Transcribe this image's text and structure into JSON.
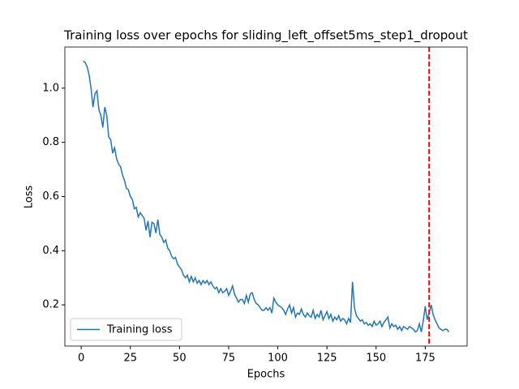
{
  "chart_data": {
    "type": "line",
    "title": "Training loss over epochs for sliding_left_offset5ms_step1_dropout",
    "xlabel": "Epochs",
    "ylabel": "Loss",
    "x": [
      1,
      2,
      3,
      4,
      5,
      6,
      7,
      8,
      9,
      10,
      11,
      12,
      13,
      14,
      15,
      16,
      17,
      18,
      19,
      20,
      21,
      22,
      23,
      24,
      25,
      26,
      27,
      28,
      29,
      30,
      31,
      32,
      33,
      34,
      35,
      36,
      37,
      38,
      39,
      40,
      41,
      42,
      43,
      44,
      45,
      46,
      47,
      48,
      49,
      50,
      51,
      52,
      53,
      54,
      55,
      56,
      57,
      58,
      59,
      60,
      61,
      62,
      63,
      64,
      65,
      66,
      67,
      68,
      69,
      70,
      71,
      72,
      73,
      74,
      75,
      76,
      77,
      78,
      79,
      80,
      81,
      82,
      83,
      84,
      85,
      86,
      87,
      88,
      89,
      90,
      91,
      92,
      93,
      94,
      95,
      96,
      97,
      98,
      99,
      100,
      101,
      102,
      103,
      104,
      105,
      106,
      107,
      108,
      109,
      110,
      111,
      112,
      113,
      114,
      115,
      116,
      117,
      118,
      119,
      120,
      121,
      122,
      123,
      124,
      125,
      126,
      127,
      128,
      129,
      130,
      131,
      132,
      133,
      134,
      135,
      136,
      137,
      138,
      139,
      140,
      141,
      142,
      143,
      144,
      145,
      146,
      147,
      148,
      149,
      150,
      151,
      152,
      153,
      154,
      155,
      156,
      157,
      158,
      159,
      160,
      161,
      162,
      163,
      164,
      165,
      166,
      167,
      168,
      169,
      170,
      171,
      172,
      173,
      174,
      175,
      176,
      177,
      178,
      179,
      180,
      181,
      182,
      183,
      184,
      185,
      186,
      187
    ],
    "series": [
      {
        "name": "Training loss",
        "color": "#1f77b4",
        "values": [
          1.1,
          1.095,
          1.08,
          1.05,
          1.0,
          0.93,
          0.98,
          0.99,
          0.92,
          0.9,
          0.855,
          0.93,
          0.9,
          0.82,
          0.81,
          0.76,
          0.78,
          0.74,
          0.72,
          0.71,
          0.68,
          0.66,
          0.63,
          0.625,
          0.6,
          0.59,
          0.555,
          0.56,
          0.525,
          0.54,
          0.53,
          0.52,
          0.475,
          0.51,
          0.45,
          0.505,
          0.5,
          0.465,
          0.515,
          0.46,
          0.45,
          0.43,
          0.44,
          0.41,
          0.4,
          0.38,
          0.37,
          0.375,
          0.35,
          0.34,
          0.33,
          0.31,
          0.3,
          0.31,
          0.285,
          0.305,
          0.285,
          0.3,
          0.28,
          0.29,
          0.275,
          0.29,
          0.28,
          0.29,
          0.275,
          0.285,
          0.27,
          0.26,
          0.265,
          0.245,
          0.26,
          0.245,
          0.25,
          0.26,
          0.235,
          0.25,
          0.27,
          0.24,
          0.225,
          0.21,
          0.22,
          0.22,
          0.205,
          0.235,
          0.21,
          0.24,
          0.245,
          0.22,
          0.205,
          0.2,
          0.19,
          0.18,
          0.18,
          0.19,
          0.18,
          0.19,
          0.17,
          0.225,
          0.21,
          0.2,
          0.195,
          0.19,
          0.18,
          0.165,
          0.185,
          0.2,
          0.17,
          0.19,
          0.155,
          0.17,
          0.165,
          0.185,
          0.165,
          0.155,
          0.17,
          0.16,
          0.155,
          0.18,
          0.15,
          0.165,
          0.155,
          0.18,
          0.145,
          0.16,
          0.175,
          0.15,
          0.165,
          0.14,
          0.155,
          0.145,
          0.16,
          0.14,
          0.15,
          0.145,
          0.13,
          0.15,
          0.135,
          0.285,
          0.19,
          0.16,
          0.15,
          0.14,
          0.145,
          0.13,
          0.135,
          0.125,
          0.13,
          0.12,
          0.14,
          0.125,
          0.13,
          0.14,
          0.12,
          0.135,
          0.145,
          0.155,
          0.115,
          0.13,
          0.12,
          0.125,
          0.11,
          0.12,
          0.105,
          0.12,
          0.115,
          0.11,
          0.12,
          0.115,
          0.11,
          0.1,
          0.105,
          0.13,
          0.1,
          0.14,
          0.195,
          0.145,
          0.17,
          0.2,
          0.165,
          0.145,
          0.13,
          0.115,
          0.11,
          0.105,
          0.11,
          0.11,
          0.1
        ]
      }
    ],
    "vline": {
      "x": 177,
      "color": "#ff0000"
    },
    "xlim": [
      -8.3,
      196.3
    ],
    "xticks": [
      0,
      25,
      50,
      75,
      100,
      125,
      150,
      175
    ],
    "ylim": [
      0.048,
      1.152
    ],
    "yticks": [
      0.2,
      0.4,
      0.6,
      0.8,
      {
        "value": 1,
        "label": "1.0"
      }
    ],
    "legend": "lower left"
  }
}
